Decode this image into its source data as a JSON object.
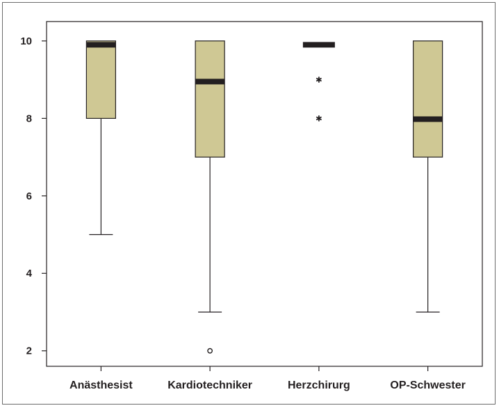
{
  "chart_data": {
    "type": "boxplot",
    "title": "",
    "xlabel": "",
    "ylabel": "",
    "ylim": [
      1.6,
      10.5
    ],
    "yticks": [
      2,
      4,
      6,
      8,
      10
    ],
    "grid": false,
    "categories": [
      "Anästhesist",
      "Kardiotechniker",
      "Herzchirurg",
      "OP-Schwester"
    ],
    "boxes": [
      {
        "category": "Anästhesist",
        "whisker_low": 5,
        "q1": 8,
        "median": 9.9,
        "q3": 10,
        "whisker_high": 10,
        "outliers": [],
        "extremes": []
      },
      {
        "category": "Kardiotechniker",
        "whisker_low": 3,
        "q1": 7,
        "median": 8.95,
        "q3": 10,
        "whisker_high": 10,
        "outliers": [
          2
        ],
        "extremes": []
      },
      {
        "category": "Herzchirurg",
        "whisker_low": 9.9,
        "q1": 9.9,
        "median": 9.9,
        "q3": 9.9,
        "whisker_high": 9.9,
        "outliers": [],
        "extremes": [
          9,
          8
        ]
      },
      {
        "category": "OP-Schwester",
        "whisker_low": 3,
        "q1": 7,
        "median": 7.98,
        "q3": 10,
        "whisker_high": 10,
        "outliers": [],
        "extremes": []
      }
    ],
    "colors": {
      "box_fill": "#cfc894",
      "stroke": "#231f20",
      "median": "#231f20"
    }
  }
}
